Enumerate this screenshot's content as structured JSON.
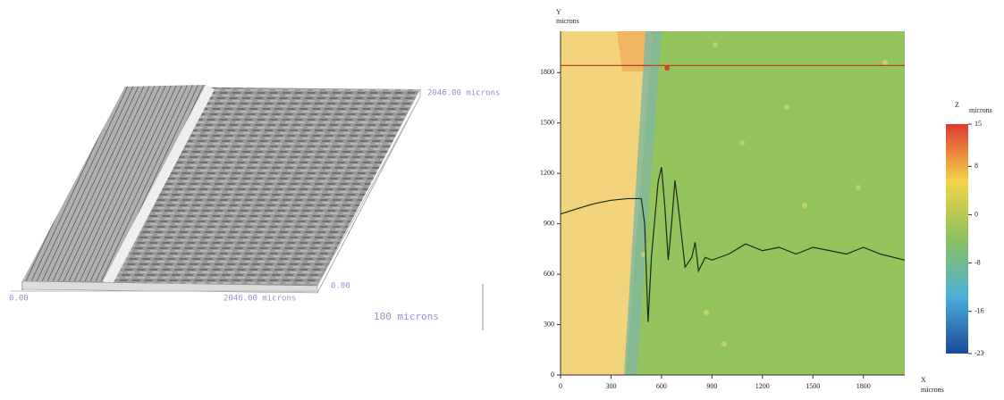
{
  "surface_3d": {
    "x_end_label": "2046.00 microns",
    "x_start_label": "0.00",
    "y_end_label": "2046.00 microns",
    "y_start_label": "0.00",
    "scale_label": "100 microns"
  },
  "height_map": {
    "x_axis_label": "microns",
    "x_axis_name": "X",
    "y_axis_label": "microns",
    "y_axis_name": "Y",
    "xlim": [
      0,
      2046
    ],
    "ylim": [
      0,
      2046
    ],
    "xticks": [
      0,
      300,
      600,
      900,
      1200,
      1500,
      1800
    ],
    "yticks": [
      0,
      300,
      600,
      900,
      1200,
      1500,
      1800
    ],
    "profile": {
      "x": [
        0,
        100,
        200,
        300,
        400,
        480,
        500,
        520,
        540,
        580,
        600,
        620,
        640,
        660,
        680,
        700,
        740,
        780,
        800,
        820,
        860,
        900,
        1000,
        1100,
        1200,
        1300,
        1400,
        1500,
        1600,
        1700,
        1800,
        1900,
        2046
      ],
      "values": [
        958,
        990,
        1020,
        1040,
        1050,
        1050,
        900,
        316,
        700,
        1150,
        1237,
        1000,
        684,
        900,
        1158,
        1000,
        642,
        700,
        790,
        620,
        700,
        684,
        720,
        780,
        740,
        760,
        720,
        760,
        740,
        720,
        760,
        720,
        684
      ],
      "color": "#1a2a1a"
    },
    "section_y": 1842,
    "section_color": "#b8402a",
    "colorbar": {
      "title": "Z",
      "unit": "microns",
      "clim": [
        -23,
        15
      ],
      "ticks": [
        15,
        8,
        0,
        -8,
        -16,
        -23
      ]
    }
  }
}
